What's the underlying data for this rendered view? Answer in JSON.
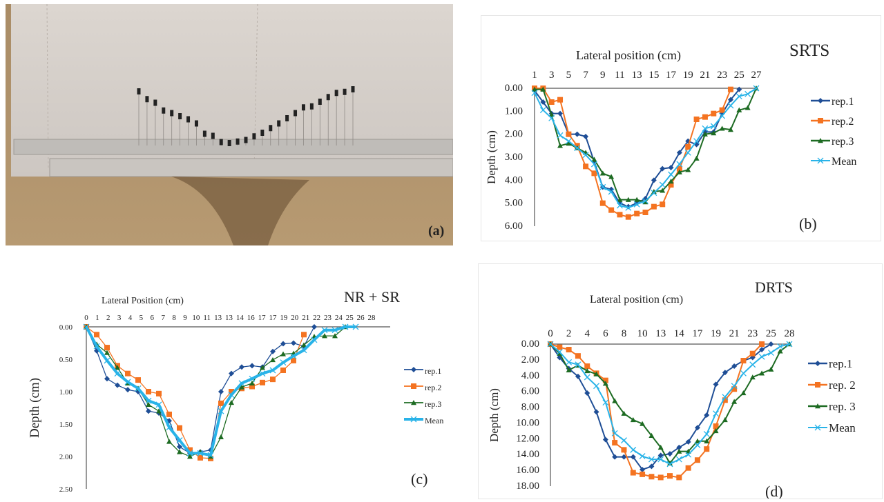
{
  "figure": {
    "panel_a": {
      "label": "(a)",
      "description": "Field photograph of pin-type profilometer over soil furrow"
    },
    "colors": {
      "rep1": "#1f4e96",
      "rep2": "#f47321",
      "rep3": "#1d6b22",
      "mean": "#29b3e8"
    }
  },
  "chart_data": [
    {
      "id": "b",
      "type": "line",
      "title": "SRTS",
      "panel_label": "(b)",
      "xlabel": "Lateral position (cm)",
      "ylabel": "Depth (cm)",
      "x_tick_labels": [
        "1",
        "3",
        "5",
        "7",
        "9",
        "11",
        "13",
        "15",
        "17",
        "19",
        "21",
        "23",
        "25",
        "27"
      ],
      "y_tick_labels": [
        "0.00",
        "1.00",
        "2.00",
        "3.00",
        "4.00",
        "5.00",
        "6.00"
      ],
      "ylim": [
        0,
        6
      ],
      "y_inverted": true,
      "legend": [
        "rep.1",
        "rep.2",
        "rep.3",
        "Mean"
      ],
      "legend_position": "right",
      "x": [
        1,
        2,
        3,
        4,
        5,
        6,
        7,
        8,
        9,
        10,
        11,
        12,
        13,
        14,
        15,
        16,
        17,
        18,
        19,
        20,
        21,
        22,
        23,
        24,
        25,
        26,
        27
      ],
      "series": [
        {
          "name": "rep.1",
          "values": [
            0.1,
            0.6,
            1.1,
            1.1,
            2.0,
            2.0,
            2.1,
            3.2,
            4.3,
            4.4,
            5.0,
            5.15,
            5.0,
            4.8,
            4.0,
            3.5,
            3.45,
            2.8,
            2.3,
            2.45,
            1.9,
            1.9,
            1.1,
            0.5,
            0.05,
            null,
            null
          ]
        },
        {
          "name": "rep.2",
          "values": [
            0.0,
            0.0,
            0.6,
            0.5,
            2.0,
            2.5,
            3.4,
            3.7,
            5.0,
            5.3,
            5.5,
            5.6,
            5.45,
            5.4,
            5.15,
            5.05,
            4.2,
            3.5,
            2.55,
            1.35,
            1.25,
            1.1,
            0.95,
            0.05,
            null,
            null,
            null
          ]
        },
        {
          "name": "rep.3",
          "values": [
            0.05,
            0.05,
            1.15,
            2.5,
            2.4,
            2.6,
            2.8,
            3.1,
            3.7,
            3.85,
            4.85,
            4.85,
            4.85,
            4.95,
            4.5,
            4.45,
            4.05,
            3.65,
            3.55,
            3.05,
            2.0,
            1.95,
            1.75,
            1.8,
            0.95,
            0.85,
            0.0
          ]
        },
        {
          "name": "Mean",
          "values": [
            0.2,
            0.95,
            1.3,
            2.05,
            2.3,
            2.6,
            2.9,
            3.3,
            4.3,
            4.5,
            5.1,
            5.2,
            5.05,
            4.9,
            4.55,
            4.2,
            3.75,
            3.3,
            2.8,
            2.3,
            1.75,
            1.65,
            1.2,
            0.75,
            0.35,
            0.25,
            0.0
          ]
        }
      ]
    },
    {
      "id": "c",
      "type": "line",
      "title": "NR + SR",
      "panel_label": "(c)",
      "xlabel": "Lateral Position (cm)",
      "ylabel": "Depth (cm)",
      "x_tick_labels": [
        "0",
        "1",
        "2",
        "3",
        "4",
        "5",
        "6",
        "7",
        "8",
        "9",
        "10",
        "11",
        "13",
        "13",
        "14",
        "16",
        "17",
        "17",
        "19",
        "20",
        "21",
        "22",
        "23",
        "24",
        "25",
        "26",
        "28"
      ],
      "y_tick_labels": [
        "0.00",
        "0.50",
        "1.00",
        "1.50",
        "2.00",
        "2.50"
      ],
      "ylim": [
        0,
        2.5
      ],
      "y_inverted": true,
      "legend": [
        "rep.1",
        "rep.2",
        "rep.3",
        "Mean"
      ],
      "legend_position": "right",
      "x": [
        0,
        1,
        2,
        3,
        4,
        5,
        6,
        7,
        8,
        9,
        10,
        11,
        12,
        13,
        14,
        15,
        16,
        17,
        18,
        19,
        20,
        21,
        22,
        23,
        24,
        25,
        26
      ],
      "series": [
        {
          "name": "rep.1",
          "values": [
            0.0,
            0.37,
            0.8,
            0.9,
            0.97,
            1.0,
            1.3,
            1.33,
            1.45,
            1.85,
            1.95,
            1.93,
            1.9,
            1.0,
            0.72,
            0.62,
            0.6,
            0.62,
            0.38,
            0.26,
            0.25,
            0.3,
            0.0,
            null,
            null,
            null,
            null
          ]
        },
        {
          "name": "rep.2",
          "values": [
            0.0,
            0.12,
            0.32,
            0.6,
            0.72,
            0.82,
            1.0,
            1.03,
            1.35,
            1.56,
            1.9,
            2.02,
            2.03,
            1.18,
            1.0,
            0.95,
            0.92,
            0.86,
            0.81,
            0.67,
            0.52,
            0.12,
            null,
            null,
            null,
            null,
            null
          ]
        },
        {
          "name": "rep.3",
          "values": [
            0.0,
            0.27,
            0.4,
            0.63,
            0.87,
            0.95,
            1.2,
            1.3,
            1.77,
            1.93,
            2.0,
            1.93,
            2.0,
            1.7,
            1.17,
            0.93,
            0.87,
            0.63,
            0.51,
            0.42,
            0.41,
            0.28,
            0.15,
            0.14,
            0.14,
            0.0,
            null
          ]
        },
        {
          "name": "Mean",
          "values": [
            0.0,
            0.3,
            0.52,
            0.72,
            0.85,
            0.95,
            1.14,
            1.2,
            1.55,
            1.75,
            1.95,
            1.95,
            1.98,
            1.3,
            1.05,
            0.87,
            0.8,
            0.72,
            0.67,
            0.55,
            0.45,
            0.36,
            0.2,
            0.05,
            0.05,
            0.0,
            0.0
          ]
        }
      ]
    },
    {
      "id": "d",
      "type": "line",
      "title": "DRTS",
      "panel_label": "(d)",
      "xlabel": "Lateral position (cm)",
      "ylabel": "Depth (cm)",
      "x_tick_labels": [
        "0",
        "2",
        "4",
        "6",
        "8",
        "10",
        "13",
        "14",
        "17",
        "19",
        "21",
        "23",
        "25",
        "28"
      ],
      "y_tick_labels": [
        "0.00",
        "2.00",
        "4.00",
        "6.00",
        "8.00",
        "10.00",
        "12.00",
        "14.00",
        "16.00",
        "18.00"
      ],
      "ylim": [
        0,
        18
      ],
      "y_inverted": true,
      "legend": [
        "rep.1",
        "rep. 2",
        "rep. 3",
        "Mean"
      ],
      "legend_position": "right",
      "x": [
        0,
        1,
        2,
        3,
        4,
        5,
        6,
        7,
        8,
        9,
        10,
        11,
        12,
        13,
        14,
        15,
        16,
        17,
        18,
        19,
        20,
        21,
        22,
        23,
        24,
        25,
        26
      ],
      "series": [
        {
          "name": "rep.1",
          "values": [
            0.0,
            1.7,
            3.1,
            4.1,
            6.2,
            8.6,
            12.1,
            14.3,
            14.3,
            14.3,
            15.9,
            15.5,
            14.1,
            13.9,
            13.1,
            12.4,
            10.6,
            9.0,
            5.1,
            3.6,
            2.8,
            2.1,
            1.7,
            0.7,
            0.0,
            null,
            null
          ]
        },
        {
          "name": "rep. 2",
          "values": [
            0.0,
            0.4,
            0.7,
            1.5,
            2.8,
            3.7,
            4.6,
            12.5,
            13.4,
            16.3,
            16.5,
            16.8,
            16.9,
            16.7,
            16.9,
            15.7,
            14.7,
            13.3,
            10.4,
            7.1,
            5.7,
            2.1,
            1.2,
            0.0,
            null,
            null,
            null
          ]
        },
        {
          "name": "rep. 3",
          "values": [
            0.0,
            1.2,
            3.3,
            2.7,
            3.4,
            3.8,
            5.0,
            7.2,
            8.8,
            9.6,
            10.1,
            11.6,
            13.1,
            15.1,
            13.6,
            13.6,
            12.3,
            12.3,
            11.0,
            9.6,
            7.3,
            6.2,
            4.2,
            3.7,
            3.2,
            0.9,
            0.0
          ]
        },
        {
          "name": "Mean",
          "values": [
            0.0,
            1.0,
            2.3,
            2.6,
            4.2,
            5.3,
            7.4,
            11.3,
            12.2,
            13.4,
            14.2,
            14.6,
            14.6,
            15.2,
            14.6,
            14.0,
            12.8,
            11.4,
            8.8,
            6.7,
            5.3,
            3.7,
            2.6,
            1.6,
            1.1,
            0.3,
            0.0
          ]
        }
      ]
    }
  ]
}
